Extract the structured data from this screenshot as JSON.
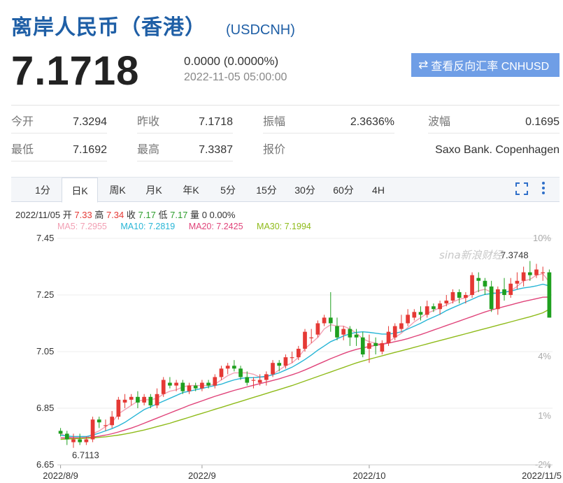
{
  "header": {
    "title": "离岸人民币（香港）",
    "symbol": "(USDCNH)"
  },
  "quote": {
    "price": "7.1718",
    "change": "0.0000 (0.0000%)",
    "time": "2022-11-05 05:00:00",
    "reverse_label": "查看反向汇率 CNHUSD"
  },
  "stats": [
    {
      "label": "今开",
      "value": "7.3294"
    },
    {
      "label": "昨收",
      "value": "7.1718"
    },
    {
      "label": "振幅",
      "value": "2.3636%"
    },
    {
      "label": "波幅",
      "value": "0.1695"
    },
    {
      "label": "最低",
      "value": "7.1692"
    },
    {
      "label": "最高",
      "value": "7.3387"
    },
    {
      "label": "报价",
      "value": ""
    },
    {
      "label": "",
      "value": "Saxo Bank. Copenhagen"
    }
  ],
  "tabs": [
    "1分",
    "日K",
    "周K",
    "月K",
    "年K",
    "5分",
    "15分",
    "30分",
    "60分",
    "4H"
  ],
  "active_tab": 1,
  "ohlc": {
    "date": "2022/11/05",
    "open_label": "开",
    "open": "7.33",
    "high_label": "高",
    "high": "7.34",
    "close_label": "收",
    "close": "7.17",
    "low_label": "低",
    "low": "7.17",
    "vol_label": "量",
    "vol": "0",
    "pct": "0.00%"
  },
  "ma": [
    {
      "label": "MA5: 7.2955",
      "color": "#f2a0b4"
    },
    {
      "label": "MA10: 7.2819",
      "color": "#27b5d6"
    },
    {
      "label": "MA20: 7.2425",
      "color": "#e0447a"
    },
    {
      "label": "MA30: 7.1994",
      "color": "#8fbb1a"
    }
  ],
  "colors": {
    "up": "#e53935",
    "down": "#1fa01f",
    "accent": "#1f5fa6"
  },
  "watermark": "sina新浪财经",
  "chart_data": {
    "type": "candlestick",
    "y_ticks": [
      "7.45",
      "7.25",
      "7.05",
      "6.85",
      "6.65"
    ],
    "ylim": [
      6.65,
      7.45
    ],
    "pct_ticks": [
      "10%",
      "4%",
      "1%",
      "-2%"
    ],
    "x_ticks": [
      "2022/8/9",
      "2022/9",
      "2022/10",
      "2022/11/5"
    ],
    "annotations": {
      "max": "7.3748",
      "min": "6.7113"
    },
    "candles": [
      [
        6.77,
        6.76,
        6.78,
        6.75
      ],
      [
        6.76,
        6.74,
        6.77,
        6.72
      ],
      [
        6.73,
        6.74,
        6.76,
        6.71
      ],
      [
        6.74,
        6.73,
        6.76,
        6.72
      ],
      [
        6.73,
        6.74,
        6.75,
        6.72
      ],
      [
        6.74,
        6.81,
        6.82,
        6.73
      ],
      [
        6.81,
        6.8,
        6.82,
        6.78
      ],
      [
        6.79,
        6.79,
        6.81,
        6.77
      ],
      [
        6.79,
        6.82,
        6.84,
        6.78
      ],
      [
        6.82,
        6.88,
        6.89,
        6.81
      ],
      [
        6.87,
        6.88,
        6.9,
        6.85
      ],
      [
        6.88,
        6.89,
        6.9,
        6.86
      ],
      [
        6.89,
        6.87,
        6.91,
        6.85
      ],
      [
        6.87,
        6.89,
        6.9,
        6.86
      ],
      [
        6.89,
        6.86,
        6.9,
        6.85
      ],
      [
        6.86,
        6.9,
        6.92,
        6.85
      ],
      [
        6.9,
        6.95,
        6.96,
        6.89
      ],
      [
        6.94,
        6.93,
        6.96,
        6.92
      ],
      [
        6.93,
        6.94,
        6.95,
        6.91
      ],
      [
        6.94,
        6.91,
        6.95,
        6.9
      ],
      [
        6.91,
        6.93,
        6.94,
        6.9
      ],
      [
        6.93,
        6.92,
        6.94,
        6.91
      ],
      [
        6.92,
        6.94,
        6.95,
        6.91
      ],
      [
        6.94,
        6.93,
        6.95,
        6.92
      ],
      [
        6.93,
        6.96,
        6.97,
        6.92
      ],
      [
        6.96,
        6.99,
        7.0,
        6.95
      ],
      [
        6.99,
        7.0,
        7.01,
        6.97
      ],
      [
        7.0,
        6.99,
        7.02,
        6.98
      ],
      [
        6.99,
        6.96,
        7.0,
        6.95
      ],
      [
        6.96,
        6.94,
        6.98,
        6.93
      ],
      [
        6.95,
        6.95,
        6.96,
        6.92
      ],
      [
        6.94,
        6.95,
        6.97,
        6.93
      ],
      [
        6.95,
        6.97,
        6.98,
        6.93
      ],
      [
        6.97,
        7.01,
        7.02,
        6.96
      ],
      [
        7.01,
        7.0,
        7.02,
        6.98
      ],
      [
        7.0,
        7.03,
        7.04,
        6.99
      ],
      [
        7.03,
        7.03,
        7.05,
        7.01
      ],
      [
        7.03,
        7.06,
        7.07,
        7.02
      ],
      [
        7.06,
        7.12,
        7.13,
        7.05
      ],
      [
        7.1,
        7.1,
        7.13,
        7.08
      ],
      [
        7.11,
        7.15,
        7.16,
        7.1
      ],
      [
        7.15,
        7.17,
        7.18,
        7.14
      ],
      [
        7.17,
        7.15,
        7.26,
        7.12
      ],
      [
        7.14,
        7.1,
        7.17,
        7.09
      ],
      [
        7.11,
        7.13,
        7.14,
        7.09
      ],
      [
        7.13,
        7.1,
        7.14,
        7.07
      ],
      [
        7.11,
        7.1,
        7.13,
        7.07
      ],
      [
        7.1,
        7.04,
        7.12,
        7.03
      ],
      [
        7.06,
        7.08,
        7.11,
        7.01
      ],
      [
        7.08,
        7.07,
        7.1,
        7.04
      ],
      [
        7.05,
        7.08,
        7.09,
        7.04
      ],
      [
        7.08,
        7.12,
        7.14,
        7.07
      ],
      [
        7.1,
        7.14,
        7.15,
        7.09
      ],
      [
        7.13,
        7.15,
        7.18,
        7.12
      ],
      [
        7.15,
        7.18,
        7.2,
        7.14
      ],
      [
        7.17,
        7.19,
        7.2,
        7.16
      ],
      [
        7.19,
        7.18,
        7.21,
        7.16
      ],
      [
        7.18,
        7.21,
        7.23,
        7.17
      ],
      [
        7.21,
        7.2,
        7.22,
        7.19
      ],
      [
        7.2,
        7.22,
        7.23,
        7.18
      ],
      [
        7.22,
        7.23,
        7.25,
        7.21
      ],
      [
        7.23,
        7.26,
        7.27,
        7.22
      ],
      [
        7.26,
        7.24,
        7.27,
        7.22
      ],
      [
        7.24,
        7.25,
        7.26,
        7.22
      ],
      [
        7.25,
        7.32,
        7.33,
        7.24
      ],
      [
        7.31,
        7.3,
        7.33,
        7.26
      ],
      [
        7.3,
        7.28,
        7.31,
        7.25
      ],
      [
        7.28,
        7.2,
        7.3,
        7.19
      ],
      [
        7.2,
        7.27,
        7.28,
        7.18
      ],
      [
        7.27,
        7.25,
        7.31,
        7.23
      ],
      [
        7.25,
        7.29,
        7.31,
        7.24
      ],
      [
        7.29,
        7.3,
        7.33,
        7.27
      ],
      [
        7.3,
        7.33,
        7.35,
        7.28
      ],
      [
        7.33,
        7.32,
        7.37,
        7.3
      ],
      [
        7.32,
        7.34,
        7.36,
        7.31
      ],
      [
        7.33,
        7.33,
        7.35,
        7.3
      ],
      [
        7.33,
        7.17,
        7.34,
        7.17
      ]
    ],
    "ma_series": [
      {
        "name": "MA5",
        "values": [
          6.76,
          6.75,
          6.745,
          6.745,
          6.745,
          6.76,
          6.77,
          6.785,
          6.8,
          6.83,
          6.845,
          6.86,
          6.875,
          6.88,
          6.88,
          6.885,
          6.9,
          6.91,
          6.915,
          6.925,
          6.93,
          6.93,
          6.93,
          6.93,
          6.935,
          6.95,
          6.965,
          6.975,
          6.975,
          6.975,
          6.97,
          6.96,
          6.96,
          6.97,
          6.985,
          7.0,
          7.01,
          7.03,
          7.06,
          7.08,
          7.1,
          7.13,
          7.145,
          7.14,
          7.14,
          7.13,
          7.115,
          7.095,
          7.085,
          7.08,
          7.075,
          7.085,
          7.1,
          7.115,
          7.135,
          7.155,
          7.17,
          7.185,
          7.195,
          7.205,
          7.215,
          7.225,
          7.235,
          7.24,
          7.255,
          7.265,
          7.27,
          7.26,
          7.255,
          7.26,
          7.265,
          7.28,
          7.3,
          7.305,
          7.32,
          7.325,
          7.2955
        ]
      },
      {
        "name": "MA10",
        "values": [
          6.755,
          6.752,
          6.75,
          6.75,
          6.75,
          6.755,
          6.762,
          6.77,
          6.778,
          6.788,
          6.8,
          6.815,
          6.83,
          6.845,
          6.855,
          6.865,
          6.875,
          6.885,
          6.895,
          6.905,
          6.91,
          6.915,
          6.92,
          6.925,
          6.93,
          6.935,
          6.943,
          6.95,
          6.955,
          6.958,
          6.958,
          6.96,
          6.963,
          6.968,
          6.975,
          6.985,
          6.995,
          7.008,
          7.022,
          7.038,
          7.055,
          7.07,
          7.085,
          7.095,
          7.105,
          7.113,
          7.118,
          7.12,
          7.118,
          7.115,
          7.112,
          7.112,
          7.115,
          7.12,
          7.13,
          7.14,
          7.15,
          7.162,
          7.172,
          7.182,
          7.195,
          7.205,
          7.215,
          7.225,
          7.235,
          7.245,
          7.252,
          7.255,
          7.257,
          7.26,
          7.263,
          7.27,
          7.275,
          7.278,
          7.282,
          7.288,
          7.2819
        ]
      },
      {
        "name": "MA20",
        "values": [
          6.745,
          6.745,
          6.745,
          6.745,
          6.746,
          6.748,
          6.751,
          6.755,
          6.76,
          6.766,
          6.773,
          6.78,
          6.788,
          6.797,
          6.806,
          6.815,
          6.824,
          6.833,
          6.842,
          6.851,
          6.86,
          6.868,
          6.876,
          6.884,
          6.892,
          6.899,
          6.906,
          6.913,
          6.919,
          6.925,
          6.931,
          6.937,
          6.942,
          6.948,
          6.954,
          6.961,
          6.968,
          6.976,
          6.985,
          6.995,
          7.005,
          7.015,
          7.025,
          7.034,
          7.043,
          7.051,
          7.058,
          7.063,
          7.068,
          7.072,
          7.076,
          7.08,
          7.085,
          7.09,
          7.096,
          7.103,
          7.11,
          7.118,
          7.126,
          7.134,
          7.142,
          7.15,
          7.158,
          7.166,
          7.174,
          7.182,
          7.19,
          7.197,
          7.203,
          7.209,
          7.215,
          7.221,
          7.227,
          7.232,
          7.237,
          7.242,
          7.2425
        ]
      },
      {
        "name": "MA30",
        "values": [
          6.74,
          6.741,
          6.742,
          6.743,
          6.744,
          6.745,
          6.747,
          6.749,
          6.752,
          6.755,
          6.759,
          6.763,
          6.768,
          6.773,
          6.779,
          6.785,
          6.791,
          6.797,
          6.804,
          6.811,
          6.818,
          6.825,
          6.832,
          6.839,
          6.846,
          6.853,
          6.86,
          6.867,
          6.874,
          6.881,
          6.888,
          6.895,
          6.902,
          6.909,
          6.916,
          6.923,
          6.93,
          6.938,
          6.946,
          6.954,
          6.962,
          6.97,
          6.978,
          6.986,
          6.994,
          7.002,
          7.01,
          7.017,
          7.023,
          7.029,
          7.035,
          7.041,
          7.047,
          7.053,
          7.059,
          7.065,
          7.071,
          7.077,
          7.083,
          7.089,
          7.095,
          7.101,
          7.107,
          7.113,
          7.119,
          7.125,
          7.131,
          7.137,
          7.143,
          7.149,
          7.155,
          7.161,
          7.167,
          7.173,
          7.18,
          7.187,
          7.1994
        ]
      }
    ]
  }
}
